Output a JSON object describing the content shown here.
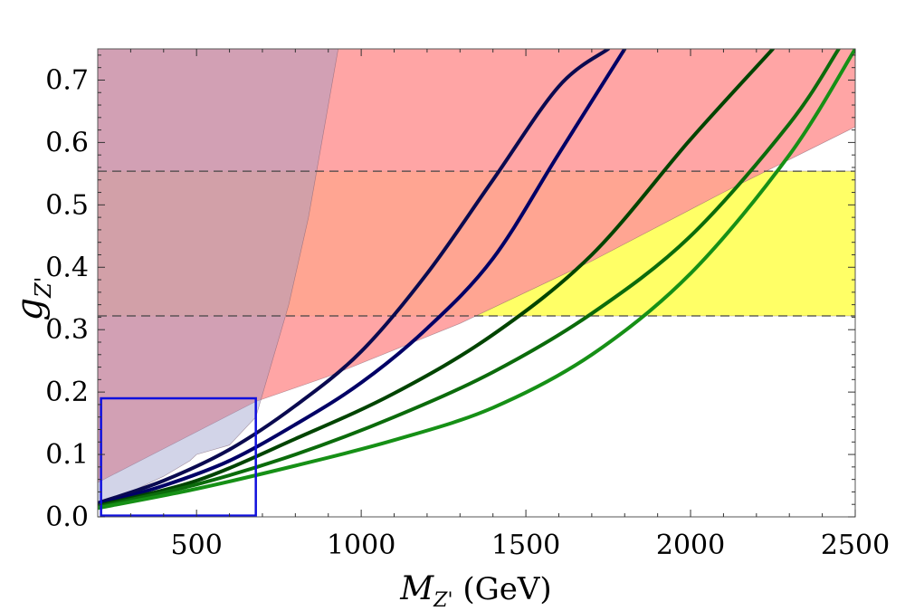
{
  "chart_data": {
    "type": "line",
    "xlabel": {
      "main": "M",
      "sub": "Z'",
      "unit": " (GeV)"
    },
    "ylabel": {
      "main": "g",
      "sub": "Z'"
    },
    "xlim": [
      200,
      2500
    ],
    "ylim": [
      0,
      0.75
    ],
    "x_ticks": [
      500,
      1000,
      1500,
      2000,
      2500
    ],
    "x_tick_labels": [
      "500",
      "1000",
      "1500",
      "2000",
      "2500"
    ],
    "y_ticks": [
      0.0,
      0.1,
      0.2,
      0.3,
      0.4,
      0.5,
      0.6,
      0.7
    ],
    "y_tick_labels": [
      "0.0",
      "0.1",
      "0.2",
      "0.3",
      "0.4",
      "0.5",
      "0.6",
      "0.7"
    ],
    "grid": false,
    "regions": [
      {
        "id": "red-excluded",
        "color": "#ff9999",
        "points": [
          [
            200,
            0.055
          ],
          [
            680,
            0.185
          ],
          [
            900,
            0.225
          ],
          [
            1300,
            0.31
          ],
          [
            1700,
            0.41
          ],
          [
            2100,
            0.52
          ],
          [
            2500,
            0.625
          ],
          [
            2500,
            0.75
          ],
          [
            200,
            0.75
          ]
        ]
      },
      {
        "id": "purple-excluded",
        "color": "#9499c8",
        "points": [
          [
            200,
            0.02
          ],
          [
            300,
            0.04
          ],
          [
            400,
            0.065
          ],
          [
            480,
            0.09
          ],
          [
            500,
            0.1
          ],
          [
            600,
            0.115
          ],
          [
            680,
            0.16
          ],
          [
            780,
            0.34
          ],
          [
            840,
            0.48
          ],
          [
            880,
            0.6
          ],
          [
            930,
            0.75
          ],
          [
            200,
            0.75
          ]
        ]
      },
      {
        "id": "yellow-band",
        "color": "#ffff66",
        "points": [
          [
            200,
            0.322
          ],
          [
            2500,
            0.322
          ],
          [
            2500,
            0.554
          ],
          [
            200,
            0.554
          ]
        ]
      }
    ],
    "hlines": [
      0.322,
      0.554
    ],
    "box": {
      "x": [
        210,
        680
      ],
      "y": [
        0.002,
        0.19
      ],
      "color": "#1010dd"
    },
    "series": [
      {
        "color": "#0a0a50",
        "x": [
          200,
          400,
          600,
          800,
          1000,
          1200,
          1400,
          1600,
          1750
        ],
        "y": [
          0.022,
          0.058,
          0.108,
          0.178,
          0.265,
          0.39,
          0.54,
          0.69,
          0.75
        ]
      },
      {
        "color": "#000066",
        "x": [
          200,
          400,
          600,
          800,
          1000,
          1200,
          1400,
          1600,
          1800
        ],
        "y": [
          0.02,
          0.05,
          0.09,
          0.148,
          0.215,
          0.302,
          0.414,
          0.582,
          0.75
        ]
      },
      {
        "color": "#004400",
        "x": [
          200,
          500,
          800,
          1100,
          1400,
          1700,
          2000,
          2250
        ],
        "y": [
          0.018,
          0.058,
          0.125,
          0.198,
          0.292,
          0.42,
          0.605,
          0.75
        ]
      },
      {
        "color": "#0b6b0b",
        "x": [
          200,
          500,
          800,
          1100,
          1400,
          1700,
          2000,
          2300,
          2450
        ],
        "y": [
          0.016,
          0.052,
          0.1,
          0.16,
          0.232,
          0.326,
          0.45,
          0.63,
          0.75
        ]
      },
      {
        "color": "#169016",
        "x": [
          200,
          500,
          800,
          1100,
          1400,
          1700,
          2000,
          2300,
          2500
        ],
        "y": [
          0.014,
          0.045,
          0.082,
          0.123,
          0.175,
          0.26,
          0.39,
          0.58,
          0.75
        ]
      }
    ]
  }
}
